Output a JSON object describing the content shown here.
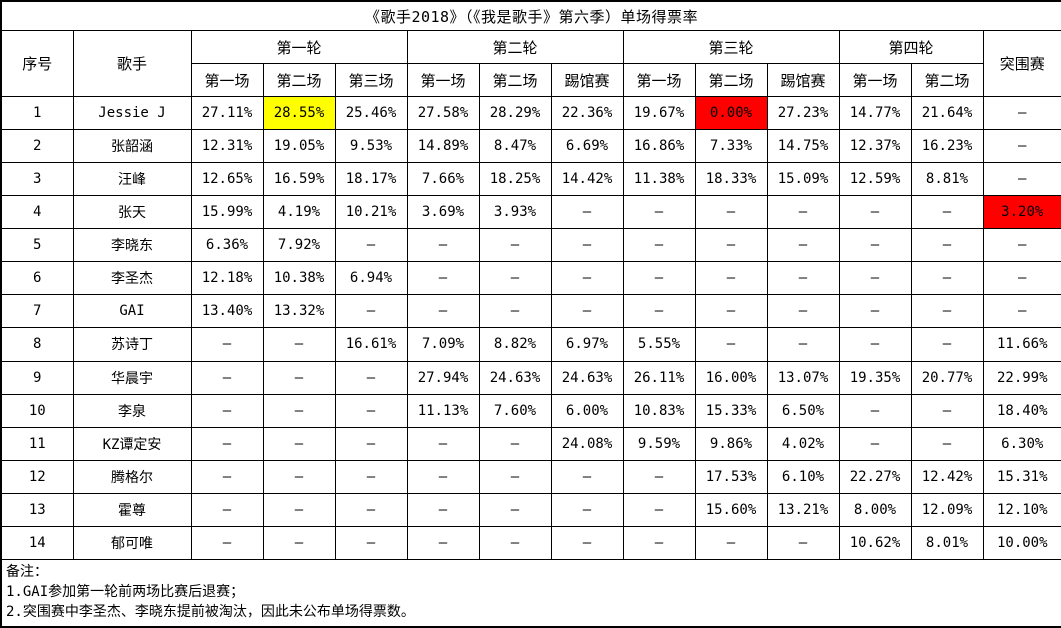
{
  "title": "《歌手2018》（《我是歌手》第六季）单场得票率",
  "table": {
    "col_no_label": "序号",
    "col_singer_label": "歌手",
    "breakout_label": "突围赛",
    "rounds": [
      {
        "label": "第一轮",
        "sub": [
          "第一场",
          "第二场",
          "第三场"
        ]
      },
      {
        "label": "第二轮",
        "sub": [
          "第一场",
          "第二场",
          "踢馆赛"
        ]
      },
      {
        "label": "第三轮",
        "sub": [
          "第一场",
          "第二场",
          "踢馆赛"
        ]
      },
      {
        "label": "第四轮",
        "sub": [
          "第一场",
          "第二场"
        ]
      }
    ]
  },
  "rows": [
    {
      "no": "1",
      "singer": "Jessie J",
      "cells": [
        "27.11%",
        {
          "v": "28.55%",
          "hl": "yellow"
        },
        "25.46%",
        "27.58%",
        "28.29%",
        "22.36%",
        "19.67%",
        {
          "v": "0.00%",
          "hl": "red"
        },
        "27.23%",
        "14.77%",
        "21.64%",
        "–"
      ]
    },
    {
      "no": "2",
      "singer": "张韶涵",
      "cells": [
        "12.31%",
        "19.05%",
        "9.53%",
        "14.89%",
        "8.47%",
        "6.69%",
        "16.86%",
        "7.33%",
        "14.75%",
        "12.37%",
        "16.23%",
        "–"
      ]
    },
    {
      "no": "3",
      "singer": "汪峰",
      "cells": [
        "12.65%",
        "16.59%",
        "18.17%",
        "7.66%",
        "18.25%",
        "14.42%",
        "11.38%",
        "18.33%",
        "15.09%",
        "12.59%",
        "8.81%",
        "–"
      ]
    },
    {
      "no": "4",
      "singer": "张天",
      "cells": [
        "15.99%",
        "4.19%",
        "10.21%",
        "3.69%",
        "3.93%",
        "–",
        "–",
        "–",
        "–",
        "–",
        "–",
        {
          "v": "3.20%",
          "hl": "red"
        }
      ]
    },
    {
      "no": "5",
      "singer": "李晓东",
      "cells": [
        "6.36%",
        "7.92%",
        "–",
        "–",
        "–",
        "–",
        "–",
        "–",
        "–",
        "–",
        "–",
        "–"
      ]
    },
    {
      "no": "6",
      "singer": "李圣杰",
      "cells": [
        "12.18%",
        "10.38%",
        "6.94%",
        "–",
        "–",
        "–",
        "–",
        "–",
        "–",
        "–",
        "–",
        "–"
      ]
    },
    {
      "no": "7",
      "singer": "GAI",
      "cells": [
        "13.40%",
        "13.32%",
        "–",
        "–",
        "–",
        "–",
        "–",
        "–",
        "–",
        "–",
        "–",
        "–"
      ]
    },
    {
      "no": "8",
      "singer": "苏诗丁",
      "cells": [
        "–",
        "–",
        "16.61%",
        "7.09%",
        "8.82%",
        "6.97%",
        "5.55%",
        "–",
        "–",
        "–",
        "–",
        "11.66%"
      ]
    },
    {
      "no": "9",
      "singer": "华晨宇",
      "cells": [
        "–",
        "–",
        "–",
        "27.94%",
        "24.63%",
        "24.63%",
        "26.11%",
        "16.00%",
        "13.07%",
        "19.35%",
        "20.77%",
        "22.99%"
      ]
    },
    {
      "no": "10",
      "singer": "李泉",
      "cells": [
        "–",
        "–",
        "–",
        "11.13%",
        "7.60%",
        "6.00%",
        "10.83%",
        "15.33%",
        "6.50%",
        "–",
        "–",
        "18.40%"
      ]
    },
    {
      "no": "11",
      "singer": "KZ谭定安",
      "cells": [
        "–",
        "–",
        "–",
        "–",
        "–",
        "24.08%",
        "9.59%",
        "9.86%",
        "4.02%",
        "–",
        "–",
        "6.30%"
      ]
    },
    {
      "no": "12",
      "singer": "腾格尔",
      "cells": [
        "–",
        "–",
        "–",
        "–",
        "–",
        "–",
        "–",
        "17.53%",
        "6.10%",
        "22.27%",
        "12.42%",
        "15.31%"
      ]
    },
    {
      "no": "13",
      "singer": "霍尊",
      "cells": [
        "–",
        "–",
        "–",
        "–",
        "–",
        "–",
        "–",
        "15.60%",
        "13.21%",
        "8.00%",
        "12.09%",
        "12.10%"
      ]
    },
    {
      "no": "14",
      "singer": "郁可唯",
      "cells": [
        "–",
        "–",
        "–",
        "–",
        "–",
        "–",
        "–",
        "–",
        "–",
        "10.62%",
        "8.01%",
        "10.00%"
      ]
    }
  ],
  "notes": {
    "heading": "备注：",
    "items": [
      "1.GAI参加第一轮前两场比赛后退赛；",
      "2.突围赛中李圣杰、李晓东提前被淘汰，因此未公布单场得票数。"
    ]
  },
  "colors": {
    "highlight_yellow": "#ffff00",
    "highlight_red": "#ff0000",
    "border": "#000000",
    "background": "#ffffff"
  }
}
